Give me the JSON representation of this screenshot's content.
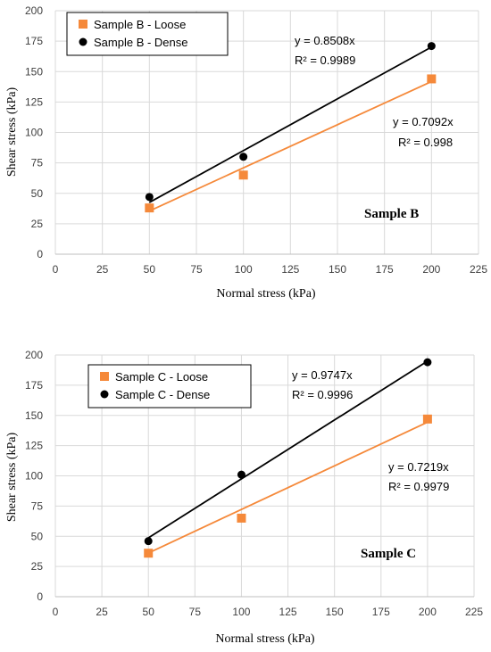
{
  "chart_data": [
    {
      "type": "scatter",
      "panel_label": "Sample B",
      "xlabel": "Normal stress (kPa)",
      "ylabel": "Shear stress (kPa)",
      "xlim": [
        0,
        225
      ],
      "ylim": [
        0,
        200
      ],
      "xticks": [
        "0",
        "25",
        "50",
        "75",
        "100",
        "125",
        "150",
        "175",
        "200",
        "225"
      ],
      "yticks": [
        "0",
        "25",
        "50",
        "75",
        "100",
        "125",
        "150",
        "175",
        "200"
      ],
      "grid": true,
      "legend_position": "top-left",
      "series": [
        {
          "name": "Sample B - Loose",
          "marker": "square",
          "color": "#f5893a",
          "x": [
            50,
            100,
            200
          ],
          "y": [
            38,
            65,
            144
          ],
          "trendline": {
            "slope": 0.7092,
            "equation": "y = 0.7092x",
            "r2": "R² = 0.998"
          }
        },
        {
          "name": "Sample B - Dense",
          "marker": "circle",
          "color": "#000000",
          "x": [
            50,
            100,
            200
          ],
          "y": [
            47,
            80,
            171
          ],
          "trendline": {
            "slope": 0.8508,
            "equation": "y = 0.8508x",
            "r2": "R² = 0.9989"
          }
        }
      ]
    },
    {
      "type": "scatter",
      "panel_label": "Sample C",
      "xlabel": "Normal stress (kPa)",
      "ylabel": "Shear stress (kPa)",
      "xlim": [
        0,
        225
      ],
      "ylim": [
        0,
        200
      ],
      "xticks": [
        "0",
        "25",
        "50",
        "75",
        "100",
        "125",
        "150",
        "175",
        "200",
        "225"
      ],
      "yticks": [
        "0",
        "25",
        "50",
        "75",
        "100",
        "125",
        "150",
        "175",
        "200"
      ],
      "grid": true,
      "legend_position": "top-left",
      "series": [
        {
          "name": "Sample C - Loose",
          "marker": "square",
          "color": "#f5893a",
          "x": [
            50,
            100,
            200
          ],
          "y": [
            36,
            65,
            147
          ],
          "trendline": {
            "slope": 0.7219,
            "equation": "y = 0.7219x",
            "r2": "R² = 0.9979"
          }
        },
        {
          "name": "Sample C - Dense",
          "marker": "circle",
          "color": "#000000",
          "x": [
            50,
            100,
            200
          ],
          "y": [
            46,
            101,
            194
          ],
          "trendline": {
            "slope": 0.9747,
            "equation": "y = 0.9747x",
            "r2": "R² = 0.9996"
          }
        }
      ]
    }
  ]
}
